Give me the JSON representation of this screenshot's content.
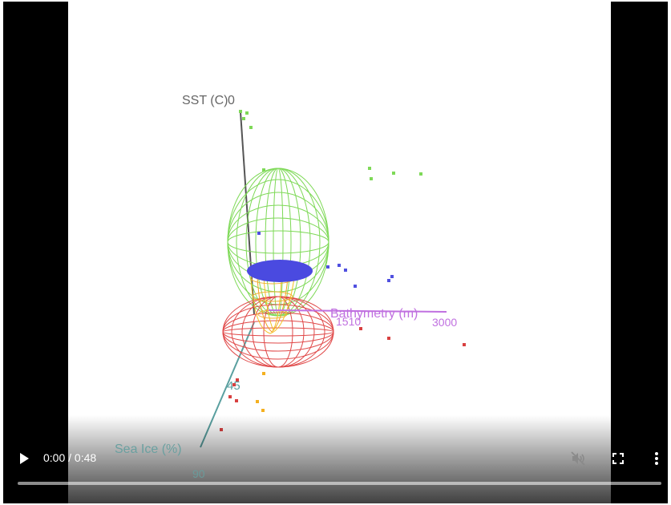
{
  "player": {
    "current_time": "0:00",
    "separator": " / ",
    "duration": "0:48",
    "progress_fraction": 0,
    "muted_state": "muted"
  },
  "plot": {
    "axis_sst_label": "SST (C)",
    "axis_sst_tick": "0",
    "axis_bathymetry_label": "Bathymetry (m)",
    "axis_bathymetry_tick_mid": "1510",
    "axis_bathymetry_tick_end": "3000",
    "axis_seaice_label": "Sea Ice (%)",
    "axis_seaice_tick_mid": "45",
    "axis_seaice_tick_end": "90"
  },
  "colors": {
    "green": "#7ed957",
    "red": "#e04848",
    "blue": "#4040e0",
    "yellow": "#f4c020",
    "purple": "#c070e0",
    "teal": "#5aa0a0",
    "gray": "#555555"
  }
}
